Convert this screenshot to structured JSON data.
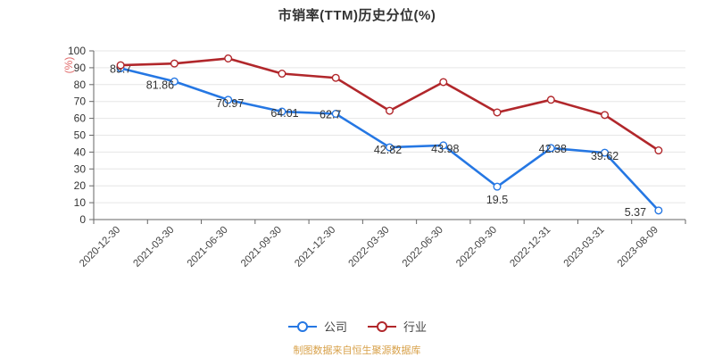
{
  "chart": {
    "title": "市销率(TTM)历史分位(%)",
    "y_axis_name": "(%)",
    "y_axis_name_color": "#e06a6a",
    "footer": "制图数据来自恒生聚源数据库",
    "footer_color": "#d8a14a",
    "axis_color": "#666666",
    "grid_color": "#e6e6e6",
    "label_color": "#333333",
    "legend": [
      {
        "label": "公司",
        "color": "#2577e3"
      },
      {
        "label": "行业",
        "color": "#b1272b"
      }
    ]
  },
  "chart_data": {
    "type": "line",
    "title": "市销率(TTM)历史分位(%)",
    "xlabel": "",
    "ylabel": "(%)",
    "ylim": [
      0,
      100
    ],
    "y_ticks": [
      0,
      10,
      20,
      30,
      40,
      50,
      60,
      70,
      80,
      90,
      100
    ],
    "grid": true,
    "legend_position": "bottom",
    "categories": [
      "2020-12-30",
      "2021-03-30",
      "2021-06-30",
      "2021-09-30",
      "2021-12-30",
      "2022-03-30",
      "2022-06-30",
      "2022-09-30",
      "2022-12-31",
      "2023-03-31",
      "2023-08-09"
    ],
    "series": [
      {
        "name": "公司",
        "color": "#2577e3",
        "labeled": true,
        "values": [
          89.7,
          81.86,
          70.97,
          64.01,
          62.7,
          42.82,
          43.98,
          19.5,
          42.38,
          39.62,
          5.37
        ]
      },
      {
        "name": "行业",
        "color": "#b1272b",
        "labeled": false,
        "values": [
          91.5,
          92.5,
          95.5,
          86.5,
          84,
          64.5,
          81.5,
          63.5,
          71,
          62,
          41
        ]
      }
    ]
  }
}
